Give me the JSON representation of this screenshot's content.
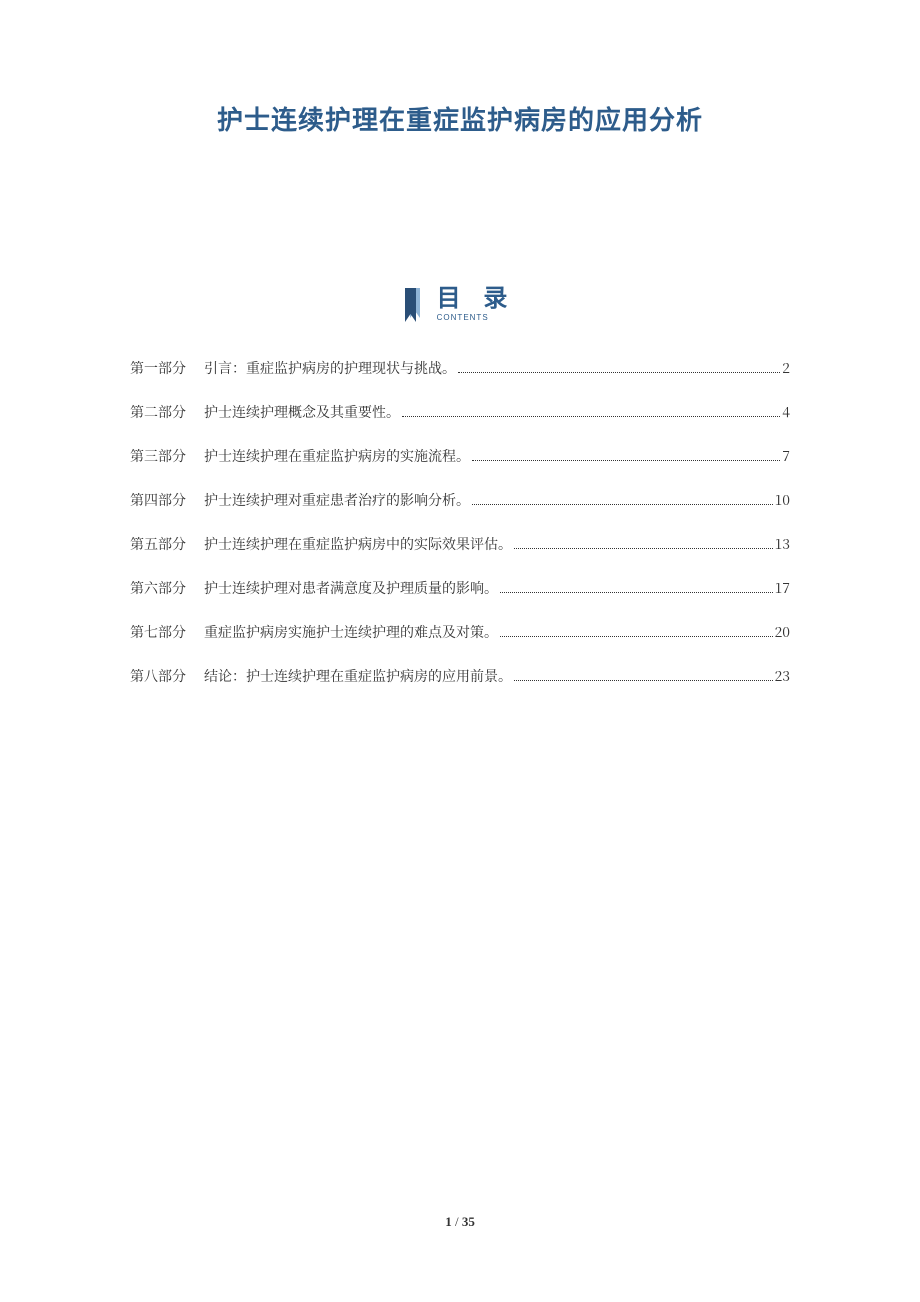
{
  "colors": {
    "title": "#2d5c8b",
    "toc_accent": "#2d5c8b",
    "toc_icon_dark": "#2a4e76",
    "toc_icon_light": "#8fb4d6",
    "body_text": "#333333",
    "background": "#ffffff"
  },
  "document": {
    "title": "护士连续护理在重症监护病房的应用分析"
  },
  "toc_header": {
    "cn": "目 录",
    "en": "CONTENTS"
  },
  "toc": [
    {
      "part": "第一部分",
      "text": "引言：重症监护病房的护理现状与挑战。",
      "page": "2"
    },
    {
      "part": "第二部分",
      "text": "护士连续护理概念及其重要性。",
      "page": "4"
    },
    {
      "part": "第三部分",
      "text": "护士连续护理在重症监护病房的实施流程。",
      "page": "7"
    },
    {
      "part": "第四部分",
      "text": "护士连续护理对重症患者治疗的影响分析。",
      "page": "10"
    },
    {
      "part": "第五部分",
      "text": "护士连续护理在重症监护病房中的实际效果评估。",
      "page": "13"
    },
    {
      "part": "第六部分",
      "text": "护士连续护理对患者满意度及护理质量的影响。",
      "page": "17"
    },
    {
      "part": "第七部分",
      "text": "重症监护病房实施护士连续护理的难点及对策。",
      "page": "20"
    },
    {
      "part": "第八部分",
      "text": "结论：护士连续护理在重症监护病房的应用前景。",
      "page": "23"
    }
  ],
  "footer": {
    "current": "1",
    "separator": " / ",
    "total": "35"
  }
}
